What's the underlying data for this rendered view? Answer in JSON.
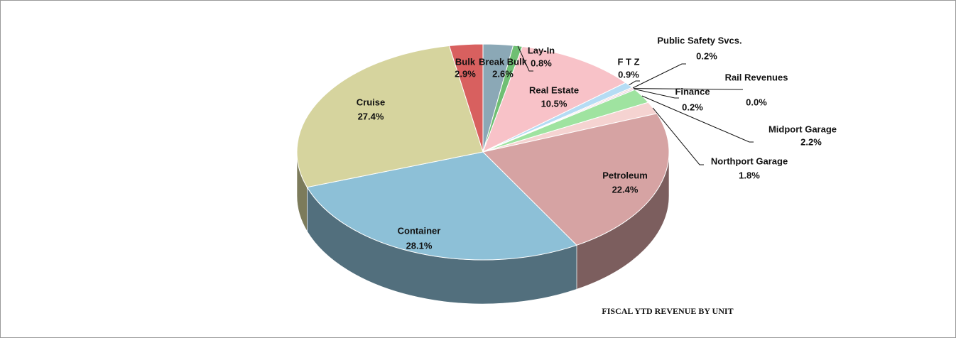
{
  "chart_data": {
    "type": "pie",
    "title": "FISCAL YTD REVENUE BY UNIT",
    "categories": [
      "Break Bulk",
      "Lay-In",
      "Real Estate",
      "F T Z",
      "Public Safety Svcs.",
      "Rail Revenues",
      "Finance",
      "Midport Garage",
      "Northport Garage",
      "Petroleum",
      "Container",
      "Cruise",
      "Bulk"
    ],
    "values": [
      2.6,
      0.8,
      10.5,
      0.9,
      0.2,
      0.0,
      0.2,
      2.2,
      1.8,
      22.4,
      28.1,
      27.4,
      2.9
    ],
    "value_labels": [
      "2.6%",
      "0.8%",
      "10.5%",
      "0.9%",
      "0.2%",
      "0.0%",
      "0.2%",
      "2.2%",
      "1.8%",
      "22.4%",
      "28.1%",
      "27.4%",
      "2.9%"
    ],
    "colors": [
      "#8ba8b6",
      "#6fbf73",
      "#f8c2c8",
      "#b5dcf4",
      "#f4d6d6",
      "#c8e8c8",
      "#e7cde0",
      "#9fe3a0",
      "#f5d3d1",
      "#d6a3a3",
      "#8dc0d7",
      "#d6d49e",
      "#d8605f"
    ]
  }
}
